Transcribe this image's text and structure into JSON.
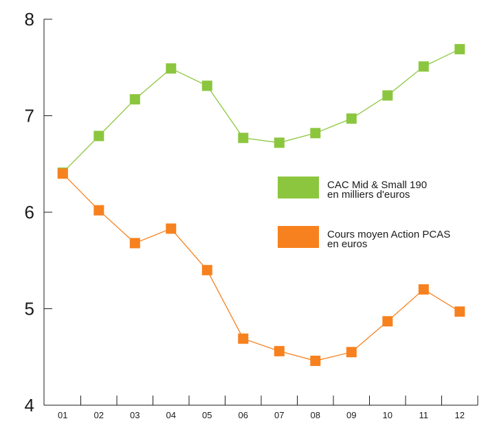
{
  "chart_data": {
    "type": "line",
    "categories": [
      "01",
      "02",
      "03",
      "04",
      "05",
      "06",
      "07",
      "08",
      "09",
      "10",
      "11",
      "12"
    ],
    "ylim": [
      4,
      8
    ],
    "yticks": [
      "4",
      "5",
      "6",
      "7",
      "8"
    ],
    "grid": false,
    "legend_position": "right",
    "series": [
      {
        "name": "CAC Mid & Small 190",
        "name_line2": "en milliers d'euros",
        "color": "#8cc63f",
        "values": [
          6.41,
          6.79,
          7.17,
          7.49,
          7.31,
          6.77,
          6.72,
          6.82,
          6.97,
          7.21,
          7.51,
          7.69
        ]
      },
      {
        "name": "Cours moyen Action PCAS",
        "name_line2": "en euros",
        "color": "#f7811e",
        "values": [
          6.4,
          6.02,
          5.68,
          5.83,
          5.4,
          4.69,
          4.56,
          4.46,
          4.55,
          4.87,
          5.2,
          4.97
        ]
      }
    ]
  }
}
